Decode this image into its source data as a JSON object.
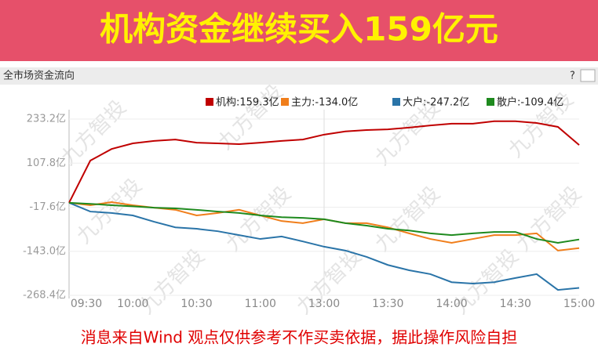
{
  "chart_data": {
    "type": "line",
    "title": "机构资金继续买入159亿元",
    "subtitle": "全市场资金流向",
    "help": "?",
    "watermark": "九方智投",
    "footnote": "消息来自Wind  观点仅供参考不作买卖依据，据此操作风险自担",
    "categories": [
      "09:30",
      null,
      null,
      "10:00",
      null,
      null,
      "10:30",
      null,
      null,
      "11:00",
      null,
      null,
      "13:00",
      null,
      null,
      "13:30",
      null,
      null,
      "14:00",
      null,
      null,
      "14:30",
      null,
      null,
      "15:00"
    ],
    "series": [
      {
        "name": "机构:159.3亿",
        "color": "#c00000",
        "values": [
          -5,
          115,
          148,
          164,
          171,
          175,
          166,
          164,
          162,
          166,
          171,
          175,
          189,
          198,
          202,
          204,
          209,
          215,
          220,
          220,
          227,
          227,
          222,
          211,
          159.3
        ]
      },
      {
        "name": "主力:-134.0亿",
        "color": "#f07e1b",
        "values": [
          -5,
          -12,
          -3,
          -12,
          -19,
          -25,
          -41,
          -34,
          -25,
          -41,
          -57,
          -63,
          -52,
          -63,
          -63,
          -75,
          -92,
          -108,
          -119,
          -108,
          -97,
          -97,
          -92,
          -141,
          -134.0
        ]
      },
      {
        "name": "大户:-247.2亿",
        "color": "#2a74a8",
        "values": [
          -5,
          -30,
          -34,
          -41,
          -59,
          -75,
          -79,
          -86,
          -97,
          -108,
          -101,
          -115,
          -130,
          -141,
          -159,
          -182,
          -197,
          -208,
          -231,
          -235,
          -231,
          -219,
          -208,
          -253,
          -247.2
        ]
      },
      {
        "name": "散户:-109.4亿",
        "color": "#1e8a1e",
        "values": [
          -5,
          -8,
          -12,
          -15,
          -19,
          -21,
          -25,
          -30,
          -34,
          -41,
          -46,
          -48,
          -52,
          -63,
          -70,
          -79,
          -84,
          -92,
          -97,
          -92,
          -88,
          -88,
          -108,
          -119,
          -109.4
        ]
      }
    ],
    "ylim": [
      -268.4,
      233.2
    ],
    "yticks": [
      {
        "value": 233.2,
        "label": "233.2亿"
      },
      {
        "value": 107.8,
        "label": "107.8亿"
      },
      {
        "value": -17.6,
        "label": "-17.6亿"
      },
      {
        "value": -143.0,
        "label": "-143.0亿"
      },
      {
        "value": -268.4,
        "label": "-268.4亿"
      }
    ],
    "grid": true
  }
}
